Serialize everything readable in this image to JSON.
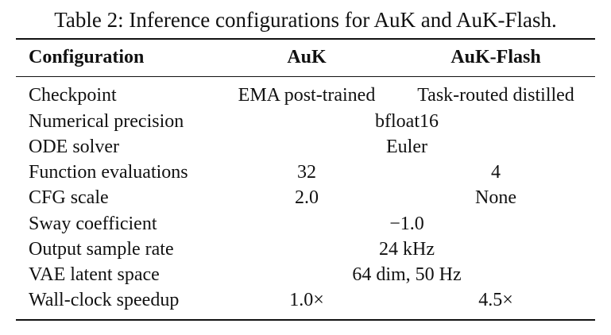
{
  "caption": "Table 2: Inference configurations for AuK and AuK-Flash.",
  "header": {
    "col1": "Configuration",
    "col2": "AuK",
    "col3": "AuK-Flash"
  },
  "rows": [
    {
      "label": "Checkpoint",
      "auk": "EMA post-trained",
      "flash": "Task-routed distilled"
    },
    {
      "label": "Numerical precision",
      "shared": "bfloat16"
    },
    {
      "label": "ODE solver",
      "shared": "Euler"
    },
    {
      "label": "Function evaluations",
      "auk": "32",
      "flash": "4"
    },
    {
      "label": "CFG scale",
      "auk": "2.0",
      "flash": "None"
    },
    {
      "label": "Sway coefficient",
      "shared": "−1.0"
    },
    {
      "label": "Output sample rate",
      "shared": "24 kHz"
    },
    {
      "label": "VAE latent space",
      "shared": "64 dim, 50 Hz"
    },
    {
      "label": "Wall-clock speedup",
      "auk": "1.0×",
      "flash": "4.5×"
    }
  ]
}
